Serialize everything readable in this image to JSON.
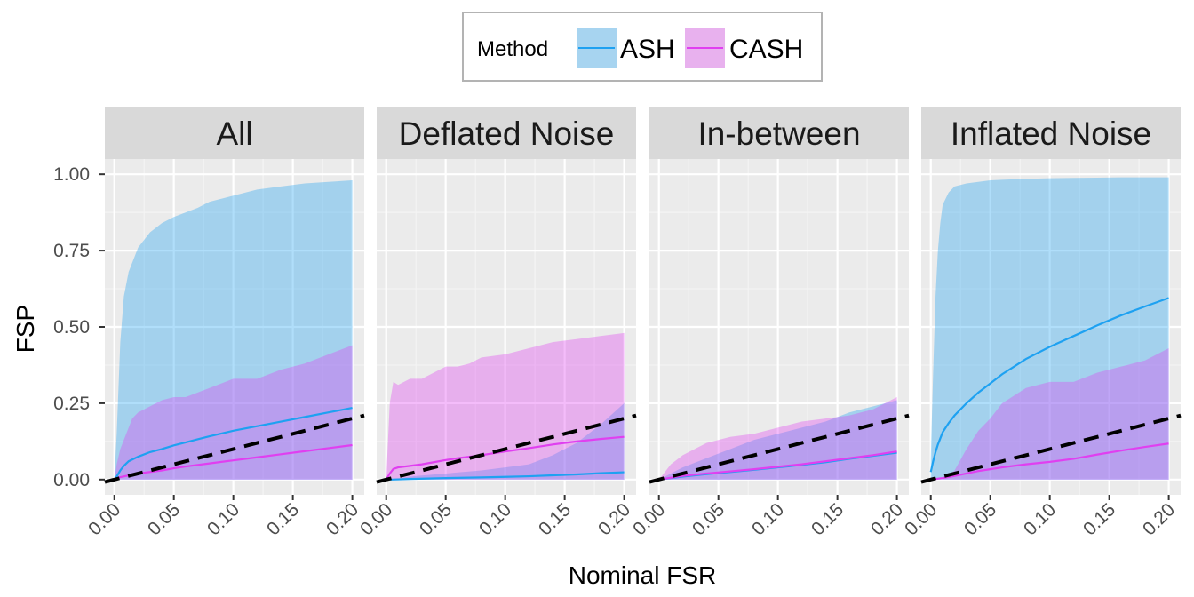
{
  "chart_data": {
    "type": "area",
    "xlabel": "Nominal FSR",
    "ylabel": "FSP",
    "xlim": [
      -0.008,
      0.21
    ],
    "ylim": [
      -0.05,
      1.05
    ],
    "x_ticks": [
      0,
      0.05,
      0.1,
      0.15,
      0.2
    ],
    "x_tick_labels": [
      "0.00",
      "0.05",
      "0.10",
      "0.15",
      "0.20"
    ],
    "y_ticks": [
      0,
      0.25,
      0.5,
      0.75,
      1.0
    ],
    "y_tick_labels": [
      "0.00",
      "0.25",
      "0.50",
      "0.75",
      "1.00"
    ],
    "grid": true,
    "legend": {
      "title": "Method",
      "placement": "top",
      "entries": [
        {
          "name": "ASH",
          "line_color": "#1ea1f1",
          "fill_color": "#a7d4f0"
        },
        {
          "name": "CASH",
          "line_color": "#e03ff0",
          "fill_color": "#e8b1ee"
        }
      ]
    },
    "reference_line": {
      "style": "dashed",
      "color": "#000000",
      "slope": 1,
      "intercept": 0
    },
    "panels": [
      {
        "title": "All",
        "series": [
          {
            "name": "ASH",
            "x": [
              0.0,
              0.002,
              0.005,
              0.008,
              0.012,
              0.02,
              0.03,
              0.04,
              0.05,
              0.06,
              0.07,
              0.08,
              0.1,
              0.12,
              0.14,
              0.16,
              0.18,
              0.2
            ],
            "mean": [
              0.0,
              0.01,
              0.03,
              0.045,
              0.06,
              0.075,
              0.09,
              0.1,
              0.112,
              0.122,
              0.132,
              0.142,
              0.16,
              0.175,
              0.19,
              0.205,
              0.22,
              0.235
            ],
            "lower": [
              0.0,
              0,
              0,
              0,
              0,
              0,
              0,
              0,
              0,
              0,
              0,
              0,
              0,
              0,
              0,
              0,
              0,
              0
            ],
            "upper": [
              0.0,
              0.15,
              0.45,
              0.6,
              0.68,
              0.76,
              0.81,
              0.84,
              0.86,
              0.875,
              0.89,
              0.91,
              0.93,
              0.95,
              0.96,
              0.97,
              0.975,
              0.98
            ]
          },
          {
            "name": "CASH",
            "x": [
              0.0,
              0.002,
              0.005,
              0.01,
              0.015,
              0.02,
              0.03,
              0.04,
              0.05,
              0.06,
              0.08,
              0.1,
              0.12,
              0.14,
              0.16,
              0.18,
              0.2
            ],
            "mean": [
              0.0,
              0.005,
              0.008,
              0.012,
              0.016,
              0.02,
              0.025,
              0.03,
              0.037,
              0.043,
              0.053,
              0.063,
              0.073,
              0.083,
              0.093,
              0.103,
              0.113
            ],
            "lower": [
              0.0,
              0,
              0,
              0,
              0,
              0,
              0,
              0,
              0,
              0,
              0,
              0,
              0,
              0,
              0,
              0,
              0
            ],
            "upper": [
              0.0,
              0.05,
              0.1,
              0.15,
              0.2,
              0.22,
              0.24,
              0.26,
              0.27,
              0.27,
              0.3,
              0.33,
              0.33,
              0.36,
              0.38,
              0.41,
              0.44
            ]
          }
        ]
      },
      {
        "title": "Deflated Noise",
        "series": [
          {
            "name": "ASH",
            "x": [
              0.0,
              0.005,
              0.02,
              0.05,
              0.08,
              0.1,
              0.12,
              0.14,
              0.16,
              0.18,
              0.2
            ],
            "mean": [
              0.0,
              0.0,
              0.002,
              0.005,
              0.007,
              0.009,
              0.011,
              0.014,
              0.017,
              0.021,
              0.024
            ],
            "lower": [
              0.0,
              0,
              0,
              0,
              0,
              0,
              0,
              0,
              0,
              0,
              0
            ],
            "upper": [
              0.0,
              0.0,
              0.01,
              0.02,
              0.03,
              0.04,
              0.05,
              0.08,
              0.12,
              0.18,
              0.25
            ]
          },
          {
            "name": "CASH",
            "x": [
              0.0,
              0.003,
              0.006,
              0.01,
              0.02,
              0.03,
              0.04,
              0.05,
              0.06,
              0.07,
              0.08,
              0.1,
              0.12,
              0.14,
              0.16,
              0.18,
              0.2
            ],
            "mean": [
              0.0,
              0.02,
              0.035,
              0.04,
              0.045,
              0.05,
              0.057,
              0.064,
              0.07,
              0.075,
              0.08,
              0.092,
              0.103,
              0.115,
              0.125,
              0.133,
              0.14
            ],
            "lower": [
              0.0,
              0,
              0,
              0,
              0,
              0,
              0,
              0,
              0,
              0,
              0,
              0,
              0,
              0,
              0,
              0,
              0
            ],
            "upper": [
              0.0,
              0.25,
              0.32,
              0.31,
              0.33,
              0.33,
              0.35,
              0.37,
              0.37,
              0.38,
              0.4,
              0.41,
              0.43,
              0.45,
              0.46,
              0.47,
              0.48
            ]
          }
        ]
      },
      {
        "title": "In-between",
        "series": [
          {
            "name": "ASH",
            "x": [
              0.0,
              0.01,
              0.02,
              0.04,
              0.06,
              0.08,
              0.1,
              0.12,
              0.14,
              0.16,
              0.18,
              0.2
            ],
            "mean": [
              0.0,
              0.005,
              0.01,
              0.018,
              0.025,
              0.032,
              0.04,
              0.048,
              0.057,
              0.068,
              0.078,
              0.088
            ],
            "lower": [
              0.0,
              0,
              0,
              0,
              0,
              0,
              0,
              0,
              0,
              0,
              0,
              0
            ],
            "upper": [
              0.0,
              0.02,
              0.04,
              0.07,
              0.1,
              0.13,
              0.15,
              0.17,
              0.19,
              0.22,
              0.24,
              0.26
            ]
          },
          {
            "name": "CASH",
            "x": [
              0.0,
              0.01,
              0.02,
              0.04,
              0.06,
              0.08,
              0.1,
              0.12,
              0.14,
              0.16,
              0.18,
              0.2
            ],
            "mean": [
              0.0,
              0.006,
              0.012,
              0.02,
              0.027,
              0.034,
              0.042,
              0.05,
              0.06,
              0.07,
              0.08,
              0.092
            ],
            "lower": [
              0.0,
              0,
              0,
              0,
              0,
              0,
              0,
              0,
              0,
              0,
              0,
              0
            ],
            "upper": [
              0.0,
              0.05,
              0.08,
              0.12,
              0.14,
              0.15,
              0.17,
              0.19,
              0.2,
              0.21,
              0.23,
              0.27
            ]
          }
        ]
      },
      {
        "title": "Inflated Noise",
        "series": [
          {
            "name": "ASH",
            "x": [
              0.0,
              0.002,
              0.004,
              0.006,
              0.008,
              0.01,
              0.015,
              0.02,
              0.03,
              0.04,
              0.05,
              0.06,
              0.08,
              0.1,
              0.12,
              0.14,
              0.16,
              0.18,
              0.2
            ],
            "mean": [
              0.025,
              0.06,
              0.09,
              0.115,
              0.135,
              0.155,
              0.185,
              0.21,
              0.25,
              0.285,
              0.315,
              0.345,
              0.395,
              0.435,
              0.47,
              0.505,
              0.538,
              0.567,
              0.595
            ],
            "lower": [
              0.0,
              0,
              0,
              0,
              0,
              0,
              0,
              0,
              0,
              0,
              0,
              0,
              0,
              0,
              0,
              0,
              0,
              0,
              0
            ],
            "upper": [
              0.07,
              0.35,
              0.6,
              0.75,
              0.84,
              0.9,
              0.94,
              0.96,
              0.97,
              0.975,
              0.98,
              0.982,
              0.985,
              0.987,
              0.988,
              0.989,
              0.99,
              0.99,
              0.99
            ]
          },
          {
            "name": "CASH",
            "x": [
              0.0,
              0.01,
              0.02,
              0.03,
              0.04,
              0.05,
              0.06,
              0.08,
              0.1,
              0.12,
              0.14,
              0.16,
              0.18,
              0.2
            ],
            "mean": [
              0.0,
              0.005,
              0.012,
              0.02,
              0.028,
              0.034,
              0.04,
              0.05,
              0.058,
              0.068,
              0.082,
              0.095,
              0.107,
              0.118
            ],
            "lower": [
              0.0,
              0,
              0,
              0,
              0,
              0,
              0,
              0,
              0,
              0,
              0,
              0,
              0,
              0
            ],
            "upper": [
              0.0,
              0.0,
              0.03,
              0.1,
              0.16,
              0.2,
              0.25,
              0.3,
              0.32,
              0.32,
              0.35,
              0.37,
              0.39,
              0.43
            ]
          }
        ]
      }
    ]
  }
}
